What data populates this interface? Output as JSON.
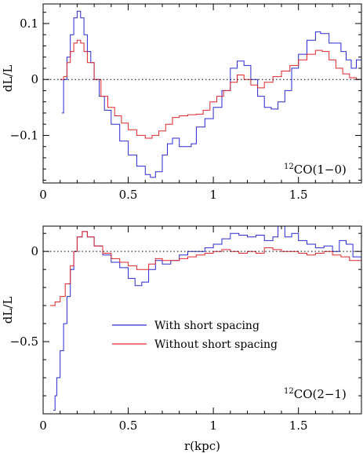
{
  "colors": {
    "with": "#2a2ad4",
    "without": "#e0262b",
    "axis": "#000000"
  },
  "chart_data": [
    {
      "type": "line",
      "annotation": {
        "sup": "12",
        "text": "CO(1−0)"
      },
      "ylabel": "dL/L",
      "xlabel": "",
      "xlim": [
        0,
        1.87
      ],
      "ylim": [
        -0.185,
        0.135
      ],
      "x_ticks": [
        0,
        0.5,
        1,
        1.5
      ],
      "x_tick_labels": [
        "0",
        "0.5",
        "1",
        "1.5"
      ],
      "y_ticks": [
        -0.1,
        0,
        0.1
      ],
      "y_tick_labels": [
        "−0.1",
        "0",
        "0.1"
      ],
      "zero_line": true,
      "series": [
        {
          "name": "With short spacing",
          "color_key": "with",
          "points": [
            [
              0.11,
              -0.06
            ],
            [
              0.12,
              0.0
            ],
            [
              0.14,
              0.04
            ],
            [
              0.16,
              0.08
            ],
            [
              0.18,
              0.11
            ],
            [
              0.2,
              0.122
            ],
            [
              0.22,
              0.11
            ],
            [
              0.24,
              0.08
            ],
            [
              0.26,
              0.05
            ],
            [
              0.28,
              0.03
            ],
            [
              0.3,
              0.0
            ],
            [
              0.33,
              -0.03
            ],
            [
              0.36,
              -0.055
            ],
            [
              0.4,
              -0.08
            ],
            [
              0.45,
              -0.11
            ],
            [
              0.5,
              -0.135
            ],
            [
              0.55,
              -0.155
            ],
            [
              0.6,
              -0.17
            ],
            [
              0.63,
              -0.175
            ],
            [
              0.66,
              -0.165
            ],
            [
              0.7,
              -0.135
            ],
            [
              0.73,
              -0.115
            ],
            [
              0.76,
              -0.105
            ],
            [
              0.8,
              -0.12
            ],
            [
              0.84,
              -0.12
            ],
            [
              0.87,
              -0.115
            ],
            [
              0.9,
              -0.085
            ],
            [
              0.95,
              -0.07
            ],
            [
              1.0,
              -0.05
            ],
            [
              1.05,
              -0.02
            ],
            [
              1.1,
              0.02
            ],
            [
              1.14,
              0.033
            ],
            [
              1.18,
              0.025
            ],
            [
              1.22,
              0.0
            ],
            [
              1.26,
              -0.03
            ],
            [
              1.3,
              -0.05
            ],
            [
              1.34,
              -0.053
            ],
            [
              1.38,
              -0.04
            ],
            [
              1.42,
              -0.02
            ],
            [
              1.46,
              0.02
            ],
            [
              1.5,
              0.045
            ],
            [
              1.55,
              0.07
            ],
            [
              1.6,
              0.085
            ],
            [
              1.63,
              0.082
            ],
            [
              1.68,
              0.065
            ],
            [
              1.72,
              0.065
            ],
            [
              1.75,
              0.05
            ],
            [
              1.78,
              0.035
            ],
            [
              1.81,
              0.02
            ],
            [
              1.84,
              0.035
            ],
            [
              1.87,
              0.04
            ]
          ]
        },
        {
          "name": "Without short spacing",
          "color_key": "without",
          "points": [
            [
              0.1,
              0.0
            ],
            [
              0.12,
              0.005
            ],
            [
              0.14,
              0.03
            ],
            [
              0.16,
              0.05
            ],
            [
              0.18,
              0.065
            ],
            [
              0.2,
              0.07
            ],
            [
              0.22,
              0.065
            ],
            [
              0.24,
              0.05
            ],
            [
              0.26,
              0.03
            ],
            [
              0.3,
              0.0
            ],
            [
              0.34,
              -0.03
            ],
            [
              0.38,
              -0.05
            ],
            [
              0.42,
              -0.065
            ],
            [
              0.46,
              -0.078
            ],
            [
              0.5,
              -0.09
            ],
            [
              0.55,
              -0.1
            ],
            [
              0.6,
              -0.105
            ],
            [
              0.64,
              -0.1
            ],
            [
              0.68,
              -0.092
            ],
            [
              0.72,
              -0.08
            ],
            [
              0.76,
              -0.068
            ],
            [
              0.8,
              -0.065
            ],
            [
              0.85,
              -0.063
            ],
            [
              0.9,
              -0.062
            ],
            [
              0.94,
              -0.055
            ],
            [
              0.98,
              -0.04
            ],
            [
              1.02,
              -0.03
            ],
            [
              1.06,
              -0.02
            ],
            [
              1.1,
              -0.005
            ],
            [
              1.14,
              0.008
            ],
            [
              1.18,
              0.0
            ],
            [
              1.22,
              -0.01
            ],
            [
              1.26,
              -0.015
            ],
            [
              1.3,
              -0.005
            ],
            [
              1.35,
              0.005
            ],
            [
              1.4,
              0.015
            ],
            [
              1.45,
              0.025
            ],
            [
              1.5,
              0.035
            ],
            [
              1.55,
              0.045
            ],
            [
              1.6,
              0.052
            ],
            [
              1.64,
              0.05
            ],
            [
              1.68,
              0.035
            ],
            [
              1.72,
              0.02
            ],
            [
              1.76,
              0.01
            ],
            [
              1.8,
              0.003
            ],
            [
              1.84,
              0.0
            ],
            [
              1.87,
              0.0
            ]
          ]
        }
      ]
    },
    {
      "type": "line",
      "annotation": {
        "sup": "12",
        "text": "CO(2−1)"
      },
      "ylabel": "dL/L",
      "xlabel": "r(kpc)",
      "xlim": [
        0,
        1.87
      ],
      "ylim": [
        -0.9,
        0.14
      ],
      "x_ticks": [
        0,
        0.5,
        1,
        1.5
      ],
      "x_tick_labels": [
        "0",
        "0.5",
        "1",
        "1.5"
      ],
      "y_ticks": [
        -0.5,
        0
      ],
      "y_tick_labels": [
        "−0.5",
        "0"
      ],
      "zero_line": true,
      "legend": {
        "placement": "center-left"
      },
      "series": [
        {
          "name": "With short spacing",
          "color_key": "with",
          "points": [
            [
              0.06,
              -0.88
            ],
            [
              0.07,
              -0.8
            ],
            [
              0.08,
              -0.7
            ],
            [
              0.1,
              -0.55
            ],
            [
              0.12,
              -0.4
            ],
            [
              0.14,
              -0.25
            ],
            [
              0.16,
              -0.1
            ],
            [
              0.18,
              0.0
            ],
            [
              0.2,
              0.08
            ],
            [
              0.23,
              0.11
            ],
            [
              0.26,
              0.08
            ],
            [
              0.3,
              0.03
            ],
            [
              0.35,
              -0.02
            ],
            [
              0.4,
              -0.06
            ],
            [
              0.45,
              -0.09
            ],
            [
              0.5,
              -0.15
            ],
            [
              0.54,
              -0.19
            ],
            [
              0.58,
              -0.17
            ],
            [
              0.62,
              -0.1
            ],
            [
              0.66,
              -0.05
            ],
            [
              0.7,
              -0.07
            ],
            [
              0.75,
              -0.05
            ],
            [
              0.8,
              -0.02
            ],
            [
              0.85,
              0.0
            ],
            [
              0.9,
              0.0
            ],
            [
              0.95,
              0.02
            ],
            [
              1.0,
              0.04
            ],
            [
              1.05,
              0.07
            ],
            [
              1.1,
              0.1
            ],
            [
              1.15,
              0.09
            ],
            [
              1.2,
              0.08
            ],
            [
              1.25,
              0.09
            ],
            [
              1.3,
              0.06
            ],
            [
              1.35,
              0.08
            ],
            [
              1.38,
              0.14
            ],
            [
              1.42,
              0.08
            ],
            [
              1.46,
              0.1
            ],
            [
              1.5,
              0.06
            ],
            [
              1.55,
              0.04
            ],
            [
              1.6,
              0.02
            ],
            [
              1.65,
              0.03
            ],
            [
              1.7,
              0.0
            ],
            [
              1.74,
              0.06
            ],
            [
              1.78,
              0.04
            ],
            [
              1.82,
              -0.03
            ],
            [
              1.87,
              -0.05
            ]
          ]
        },
        {
          "name": "Without short spacing",
          "color_key": "without",
          "points": [
            [
              0.04,
              -0.3
            ],
            [
              0.07,
              -0.28
            ],
            [
              0.1,
              -0.25
            ],
            [
              0.13,
              -0.18
            ],
            [
              0.16,
              -0.08
            ],
            [
              0.18,
              0.0
            ],
            [
              0.2,
              0.08
            ],
            [
              0.23,
              0.11
            ],
            [
              0.26,
              0.08
            ],
            [
              0.3,
              0.03
            ],
            [
              0.35,
              -0.01
            ],
            [
              0.4,
              -0.04
            ],
            [
              0.45,
              -0.06
            ],
            [
              0.5,
              -0.08
            ],
            [
              0.55,
              -0.1
            ],
            [
              0.58,
              -0.1
            ],
            [
              0.62,
              -0.07
            ],
            [
              0.66,
              -0.04
            ],
            [
              0.7,
              -0.05
            ],
            [
              0.75,
              -0.05
            ],
            [
              0.8,
              -0.04
            ],
            [
              0.85,
              -0.03
            ],
            [
              0.9,
              -0.02
            ],
            [
              0.95,
              -0.01
            ],
            [
              1.0,
              0.0
            ],
            [
              1.05,
              0.01
            ],
            [
              1.1,
              0.0
            ],
            [
              1.15,
              -0.01
            ],
            [
              1.2,
              0.0
            ],
            [
              1.25,
              -0.01
            ],
            [
              1.3,
              0.02
            ],
            [
              1.35,
              0.01
            ],
            [
              1.4,
              0.0
            ],
            [
              1.45,
              0.0
            ],
            [
              1.5,
              -0.01
            ],
            [
              1.55,
              -0.02
            ],
            [
              1.6,
              -0.01
            ],
            [
              1.65,
              0.0
            ],
            [
              1.7,
              -0.02
            ],
            [
              1.75,
              -0.03
            ],
            [
              1.8,
              -0.05
            ],
            [
              1.87,
              -0.06
            ]
          ]
        }
      ]
    }
  ]
}
